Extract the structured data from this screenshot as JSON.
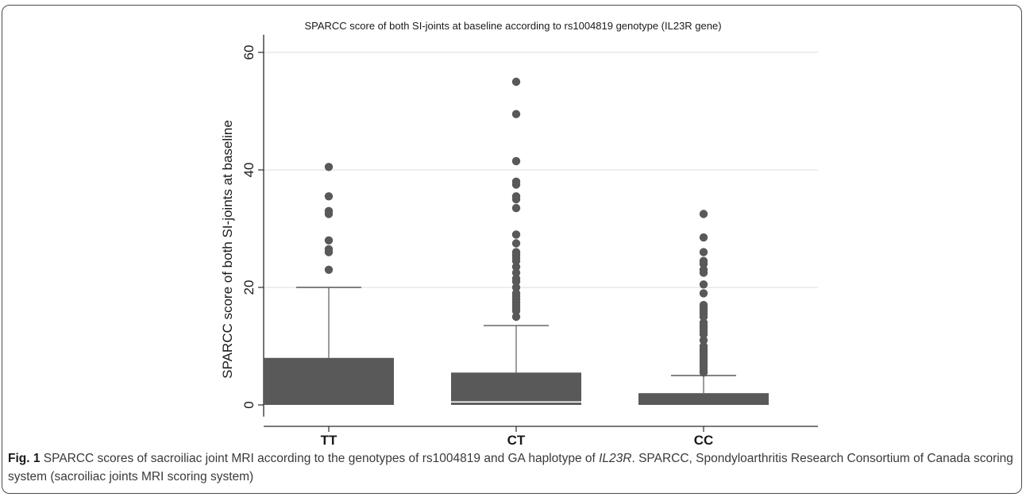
{
  "chart_data": {
    "type": "box",
    "title": "SPARCC score of both SI-joints at baseline according to rs1004819 genotype (IL23R gene)",
    "xlabel": "",
    "ylabel": "SPARCC score of both SI-joints at baseline",
    "ylim": [
      -2,
      63
    ],
    "yticks": [
      0,
      20,
      40,
      60
    ],
    "grid": true,
    "categories": [
      "TT",
      "CT",
      "CC"
    ],
    "boxes": [
      {
        "category": "TT",
        "lower_whisker": 0,
        "q1": 0,
        "median": 0,
        "q3": 8,
        "upper_whisker": 20,
        "outliers": [
          23,
          26,
          26.5,
          28,
          32.5,
          33,
          35.5,
          40.5
        ]
      },
      {
        "category": "CT",
        "lower_whisker": 0,
        "q1": 0,
        "median": 0.5,
        "q3": 5.5,
        "upper_whisker": 13.5,
        "outliers": [
          15,
          16,
          16.5,
          17,
          17.5,
          18,
          18.5,
          19,
          20,
          21,
          21.5,
          22.5,
          23.5,
          24.5,
          25,
          25.5,
          26,
          27.5,
          29,
          33.5,
          35,
          35.5,
          37.5,
          38,
          41.5,
          49.5,
          55
        ]
      },
      {
        "category": "CC",
        "lower_whisker": 0,
        "q1": 0,
        "median": 0,
        "q3": 2,
        "upper_whisker": 5,
        "outliers": [
          5.5,
          6,
          6.5,
          7,
          7.5,
          8,
          8.5,
          9,
          9.5,
          10,
          11,
          12,
          12.5,
          13,
          13.5,
          14,
          15,
          15.5,
          16,
          16.5,
          17,
          19,
          20.5,
          22.5,
          23,
          24,
          24.5,
          26,
          28.5,
          32.5
        ]
      }
    ],
    "colors": {
      "box": "#595959",
      "grid": "#e4e4e4",
      "axis": "#2b2b2b",
      "text": "#1a1a1a"
    }
  },
  "caption": {
    "label": "Fig. 1",
    "text_before": " SPARCC scores of sacroiliac joint MRI according to the genotypes of rs1004819 and GA haplotype of ",
    "gene": "IL23R",
    "text_after": ". SPARCC, Spondyloarthritis Research Consortium of Canada scoring system (sacroiliac joints MRI scoring system)"
  }
}
